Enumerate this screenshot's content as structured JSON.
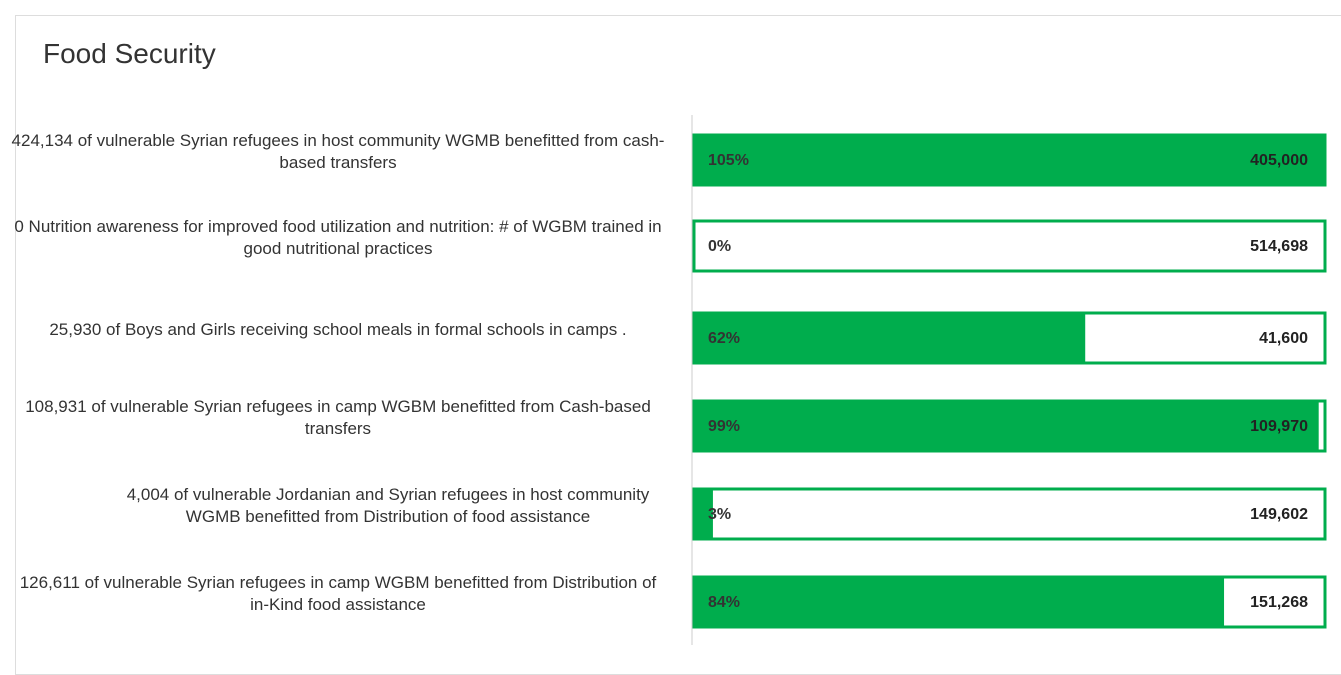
{
  "chart_data": {
    "type": "progress",
    "title": "Food Security",
    "categories": [
      "424,134 of vulnerable Syrian refugees in host community WGMB benefitted from  cash-based transfers",
      "0 Nutrition awareness for improved food utilization and nutrition: # of WGBM trained in good nutritional practices",
      "25,930 of Boys and Girls receiving school meals in formal schools in camps .",
      "108,931 of vulnerable Syrian refugees in camp WGBM  benefitted from Cash-based transfers",
      "4,004 of vulnerable Jordanian and Syrian refugees in host community WGMB benefitted from Distribution of food assistance",
      "126,611 of vulnerable Syrian refugees in camp WGBM  benefitted from  Distribution of in-Kind food assistance"
    ],
    "values": [
      105,
      0,
      62,
      99,
      3,
      84
    ],
    "value_labels": [
      "105%",
      "0%",
      "62%",
      "99%",
      "3%",
      "84%"
    ],
    "targets": [
      405000,
      514698,
      41600,
      109970,
      149602,
      151268
    ],
    "target_labels": [
      "405,000",
      "514,698",
      "41,600",
      "109,970",
      "149,602",
      "151,268"
    ],
    "xlim": [
      0,
      100
    ],
    "color": "#00ad4d"
  }
}
